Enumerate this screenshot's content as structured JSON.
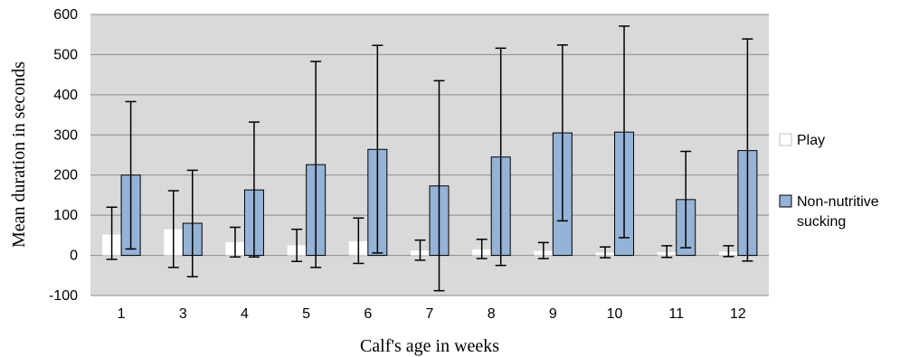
{
  "chart_data": {
    "type": "bar",
    "title": "",
    "xlabel": "Calf's age in weeks",
    "ylabel": "Mean duration in seconds",
    "ylim": [
      -100,
      600
    ],
    "yticks": [
      -100,
      0,
      100,
      200,
      300,
      400,
      500,
      600
    ],
    "grid": true,
    "legend_position": "right",
    "categories": [
      "1",
      "3",
      "4",
      "5",
      "6",
      "7",
      "8",
      "9",
      "10",
      "11",
      "12"
    ],
    "series": [
      {
        "name": "Play",
        "color": "#ffffff",
        "values": [
          52,
          65,
          33,
          25,
          35,
          12,
          15,
          11,
          7,
          8,
          9
        ],
        "error_low": [
          -10,
          -30,
          -4,
          -15,
          -20,
          -12,
          -8,
          -8,
          -6,
          -5,
          -3
        ],
        "error_high": [
          120,
          161,
          70,
          65,
          93,
          38,
          40,
          32,
          21,
          24,
          24
        ]
      },
      {
        "name": "Non-nutritive sucking",
        "color": "#95b3d7",
        "values": [
          200,
          80,
          163,
          226,
          264,
          173,
          245,
          305,
          307,
          139,
          261
        ],
        "error_low": [
          16,
          -53,
          -4,
          -30,
          6,
          -88,
          -25,
          86,
          44,
          19,
          -14
        ],
        "error_high": [
          383,
          212,
          332,
          483,
          523,
          435,
          516,
          524,
          571,
          259,
          539
        ]
      }
    ]
  }
}
